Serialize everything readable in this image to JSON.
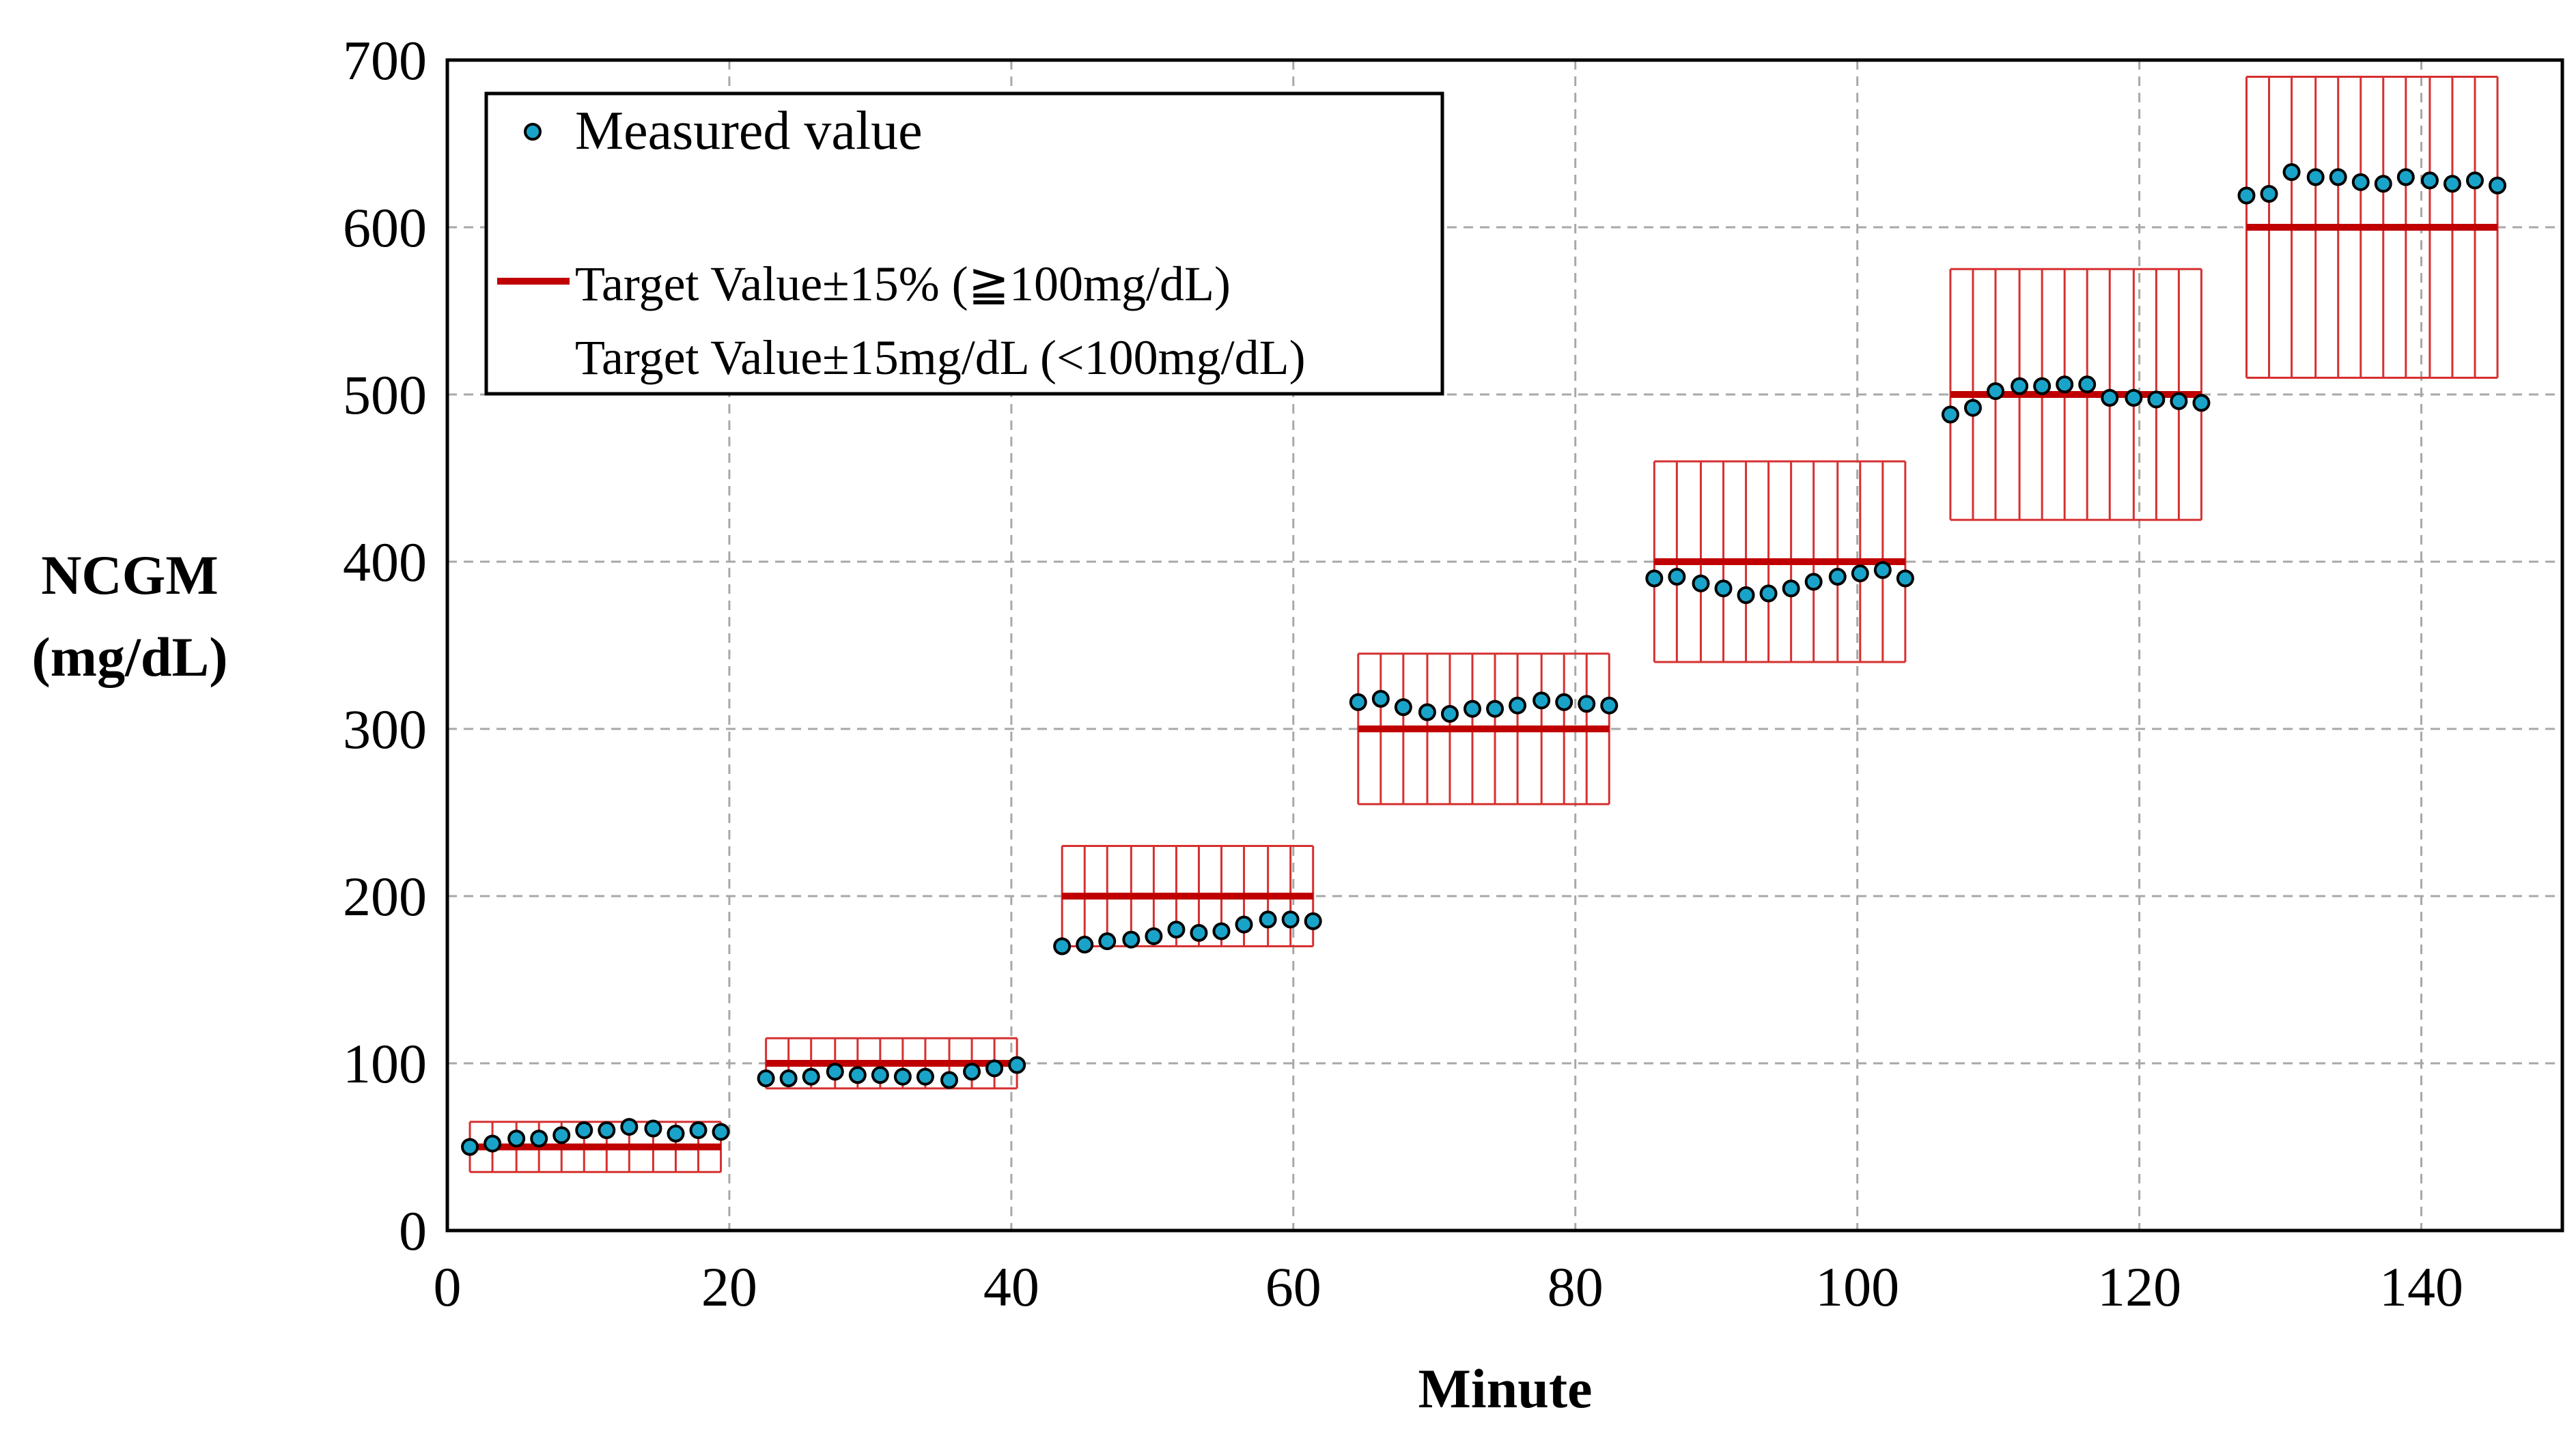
{
  "chart_data": {
    "type": "scatter",
    "xlabel": "Minute",
    "ylabel_lines": [
      "NCGM",
      "(mg/dL)"
    ],
    "xlim": [
      0,
      150
    ],
    "ylim": [
      0,
      700
    ],
    "x_ticks": [
      0,
      20,
      40,
      60,
      80,
      100,
      120,
      140
    ],
    "y_ticks": [
      0,
      100,
      200,
      300,
      400,
      500,
      600,
      700
    ],
    "grid": true,
    "legend": {
      "position": "top-left",
      "measured_label": "Measured value",
      "target_label_line1": "Target Value±15% (≧100mg/dL)",
      "target_label_line2": "Target Value±15mg/dL (<100mg/dL)"
    },
    "colors": {
      "marker_fill": "#1aa3c8",
      "marker_edge": "#000000",
      "target_line": "#c00000",
      "error_bar": "#d63030",
      "grid": "#a8a8a8"
    },
    "series": [
      {
        "name": "Measured value",
        "x": [
          1.6,
          3.2,
          4.9,
          6.5,
          8.1,
          9.7,
          11.3,
          12.9,
          14.6,
          16.2,
          17.8,
          19.4,
          22.6,
          24.2,
          25.8,
          27.5,
          29.1,
          30.7,
          32.3,
          33.9,
          35.6,
          37.2,
          38.8,
          40.4,
          43.6,
          45.2,
          46.8,
          48.5,
          50.1,
          51.7,
          53.3,
          54.9,
          56.5,
          58.2,
          59.8,
          61.4,
          64.6,
          66.2,
          67.8,
          69.5,
          71.1,
          72.7,
          74.3,
          75.9,
          77.6,
          79.2,
          80.8,
          82.4,
          85.6,
          87.2,
          88.9,
          90.5,
          92.1,
          93.7,
          95.3,
          96.9,
          98.6,
          100.2,
          101.8,
          103.4,
          106.6,
          108.2,
          109.8,
          111.5,
          113.1,
          114.7,
          116.3,
          117.9,
          119.6,
          121.2,
          122.8,
          124.4,
          127.6,
          129.2,
          130.8,
          132.5,
          134.1,
          135.7,
          137.3,
          138.9,
          140.6,
          142.2,
          143.8,
          145.4
        ],
        "y": [
          50,
          52,
          55,
          55,
          57,
          60,
          60,
          62,
          61,
          58,
          60,
          59,
          91,
          91,
          92,
          95,
          93,
          93,
          92,
          92,
          90,
          95,
          97,
          99,
          170,
          171,
          173,
          174,
          176,
          180,
          178,
          179,
          183,
          186,
          186,
          185,
          316,
          318,
          313,
          310,
          309,
          312,
          312,
          314,
          317,
          316,
          315,
          314,
          390,
          391,
          387,
          384,
          380,
          381,
          384,
          388,
          391,
          393,
          395,
          390,
          488,
          492,
          502,
          505,
          505,
          506,
          506,
          498,
          498,
          497,
          496,
          495,
          619,
          620,
          633,
          630,
          630,
          627,
          626,
          630,
          628,
          626,
          628,
          625
        ]
      }
    ],
    "target_segments": [
      {
        "x_start": 1.6,
        "x_end": 19.4,
        "target": 50,
        "lower": 35,
        "upper": 65
      },
      {
        "x_start": 22.6,
        "x_end": 40.4,
        "target": 100,
        "lower": 85,
        "upper": 115
      },
      {
        "x_start": 43.6,
        "x_end": 61.4,
        "target": 200,
        "lower": 170,
        "upper": 230
      },
      {
        "x_start": 64.6,
        "x_end": 82.4,
        "target": 300,
        "lower": 255,
        "upper": 345
      },
      {
        "x_start": 85.6,
        "x_end": 103.4,
        "target": 400,
        "lower": 340,
        "upper": 460
      },
      {
        "x_start": 106.6,
        "x_end": 124.4,
        "target": 500,
        "lower": 425,
        "upper": 575
      },
      {
        "x_start": 127.6,
        "x_end": 145.4,
        "target": 600,
        "lower": 510,
        "upper": 690
      }
    ]
  }
}
